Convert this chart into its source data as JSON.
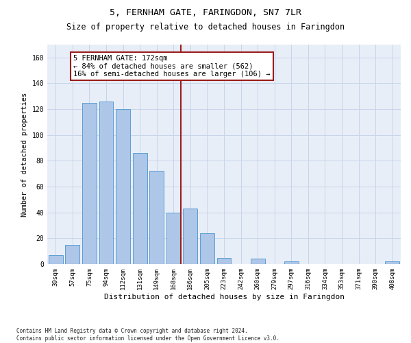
{
  "title": "5, FERNHAM GATE, FARINGDON, SN7 7LR",
  "subtitle": "Size of property relative to detached houses in Faringdon",
  "xlabel": "Distribution of detached houses by size in Faringdon",
  "ylabel": "Number of detached properties",
  "categories": [
    "39sqm",
    "57sqm",
    "75sqm",
    "94sqm",
    "112sqm",
    "131sqm",
    "149sqm",
    "168sqm",
    "186sqm",
    "205sqm",
    "223sqm",
    "242sqm",
    "260sqm",
    "279sqm",
    "297sqm",
    "316sqm",
    "334sqm",
    "353sqm",
    "371sqm",
    "390sqm",
    "408sqm"
  ],
  "values": [
    7,
    15,
    125,
    126,
    120,
    86,
    72,
    40,
    43,
    24,
    5,
    0,
    4,
    0,
    2,
    0,
    0,
    0,
    0,
    0,
    2
  ],
  "bar_color": "#aec6e8",
  "bar_edge_color": "#5a9fd4",
  "vline_idx": 7,
  "vline_color": "#9b1c1c",
  "annotation_text": "5 FERNHAM GATE: 172sqm\n← 84% of detached houses are smaller (562)\n16% of semi-detached houses are larger (106) →",
  "annotation_box_color": "#ffffff",
  "annotation_box_edge_color": "#9b1c1c",
  "ylim": [
    0,
    170
  ],
  "yticks": [
    0,
    20,
    40,
    60,
    80,
    100,
    120,
    140,
    160
  ],
  "grid_color": "#c8d4e8",
  "background_color": "#e8eef8",
  "footer": "Contains HM Land Registry data © Crown copyright and database right 2024.\nContains public sector information licensed under the Open Government Licence v3.0.",
  "title_fontsize": 9.5,
  "subtitle_fontsize": 8.5,
  "tick_fontsize": 6.5,
  "ylabel_fontsize": 7.5,
  "xlabel_fontsize": 8,
  "annotation_fontsize": 7.5,
  "footer_fontsize": 5.5
}
